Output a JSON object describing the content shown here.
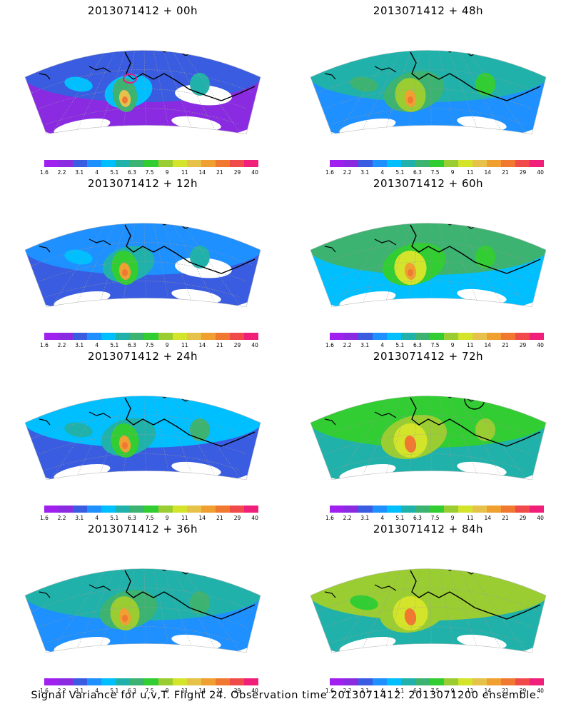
{
  "footer_caption": "Signal Variance for u,v,T. Flight 24. Observation time 2013071412. 2013071200 ensemble.",
  "colorbar": {
    "tick_labels": [
      "1.6",
      "2.2",
      "3.1",
      "4",
      "5.1",
      "6.3",
      "7.5",
      "9",
      "11",
      "14",
      "21",
      "29",
      "40"
    ],
    "colors": [
      "#a020f0",
      "#8a2be2",
      "#3a5ce0",
      "#1e90ff",
      "#00bfff",
      "#20b2aa",
      "#3cb371",
      "#32cd32",
      "#9acd32",
      "#d4e42a",
      "#e6c24a",
      "#f0a030",
      "#f07830",
      "#f04a4a",
      "#f0207a"
    ]
  },
  "panels": [
    {
      "title": "2013071412 + 00h",
      "level": 0.1,
      "has_contour": "magenta"
    },
    {
      "title": "2013071412 + 48h",
      "level": 0.55,
      "has_contour": ""
    },
    {
      "title": "2013071412 + 12h",
      "level": 0.25,
      "has_contour": ""
    },
    {
      "title": "2013071412 + 60h",
      "level": 0.65,
      "has_contour": ""
    },
    {
      "title": "2013071412 + 24h",
      "level": 0.35,
      "has_contour": ""
    },
    {
      "title": "2013071412 + 72h",
      "level": 0.75,
      "has_contour": "black"
    },
    {
      "title": "2013071412 + 36h",
      "level": 0.45,
      "has_contour": ""
    },
    {
      "title": "2013071412 + 84h",
      "level": 0.85,
      "has_contour": ""
    }
  ]
}
